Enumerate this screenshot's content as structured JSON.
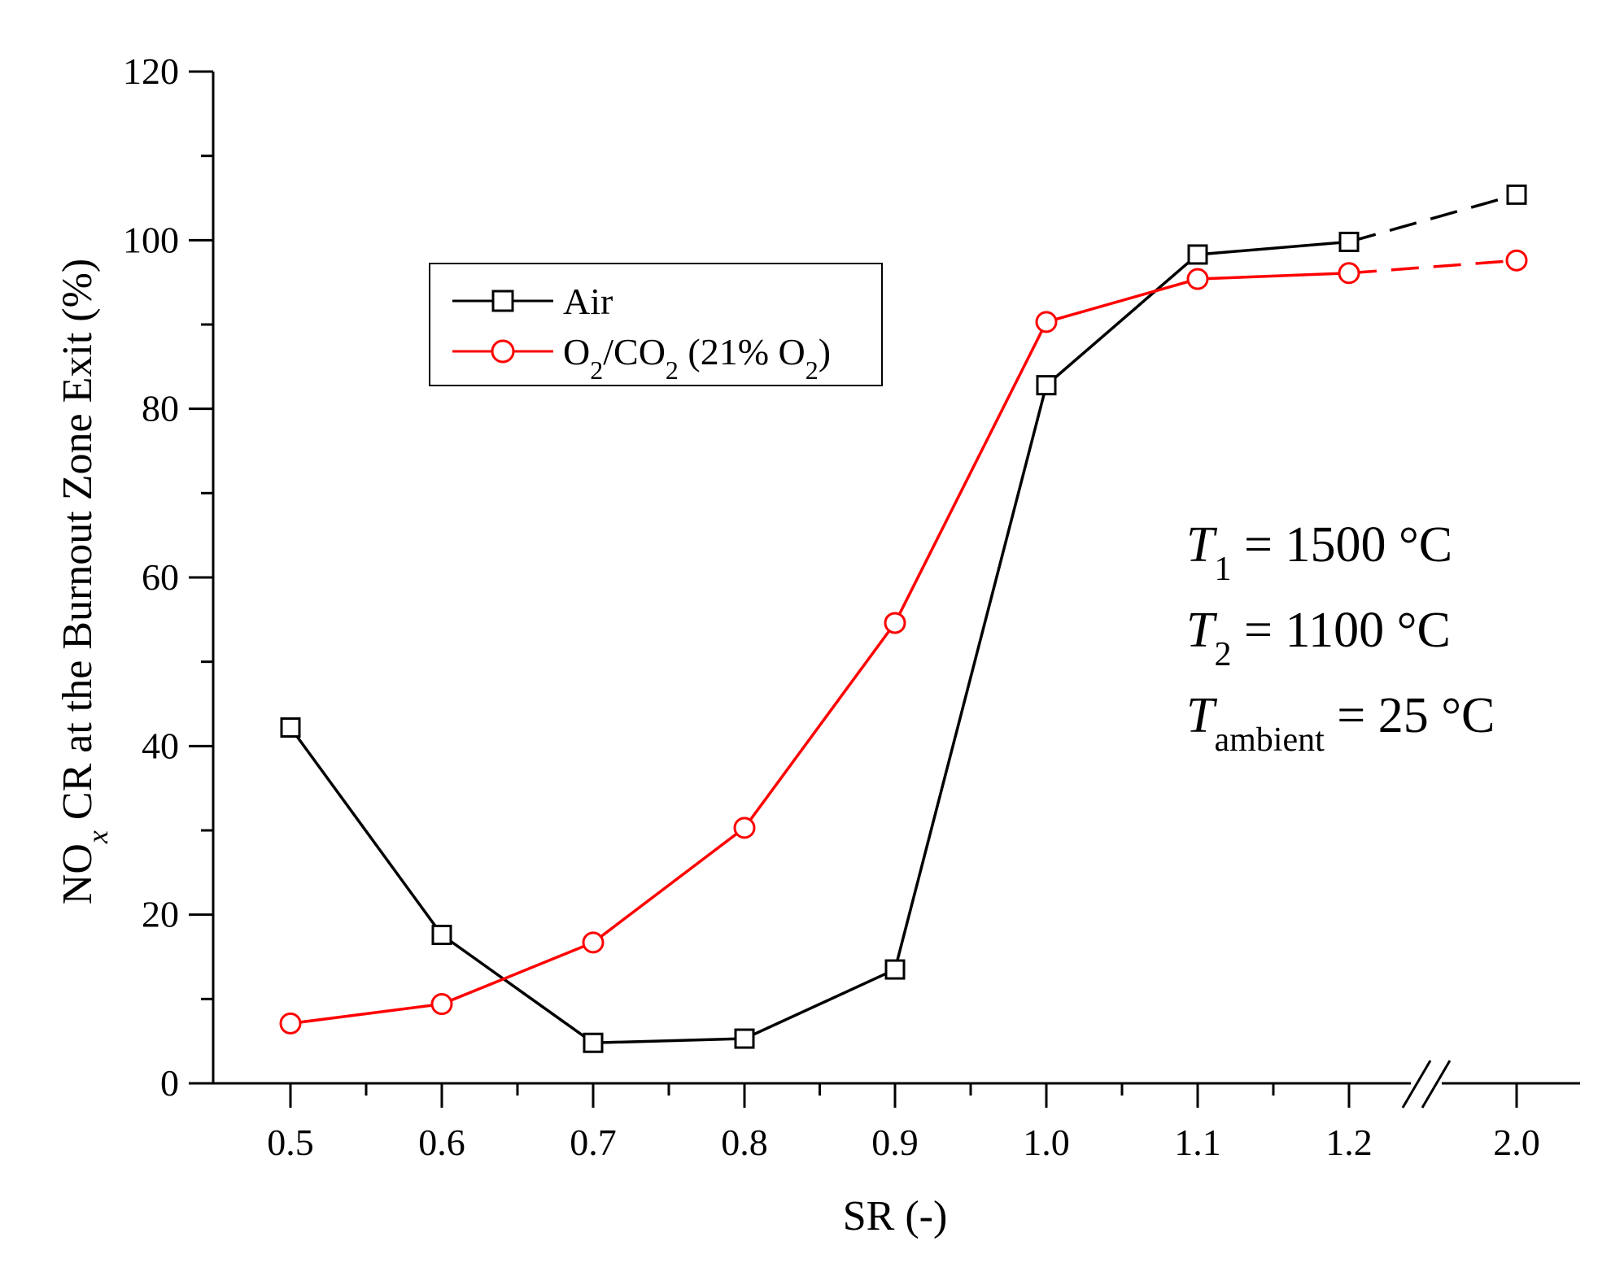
{
  "chart_data": {
    "type": "line",
    "title": "",
    "xlabel": "SR (-)",
    "ylabel": {
      "main": "NO",
      "sub": "x",
      "rest": " CR at the Burnout Zone Exit (%)"
    },
    "categories": [
      "0.5",
      "0.6",
      "0.7",
      "0.8",
      "0.9",
      "1.0",
      "1.1",
      "1.2",
      "2.0"
    ],
    "axis_break_between": [
      "1.2",
      "2.0"
    ],
    "ylim": [
      0,
      120
    ],
    "yticks": [
      0,
      20,
      40,
      60,
      80,
      100,
      120
    ],
    "ytick_labels": [
      "0",
      "20",
      "40",
      "60",
      "80",
      "100",
      "120"
    ],
    "grid": false,
    "legend_position": "upper-left",
    "series": [
      {
        "name": "Air",
        "legend_label": "Air",
        "color": "#000000",
        "marker": "square",
        "values": [
          42.2,
          17.6,
          4.8,
          5.3,
          13.5,
          82.8,
          98.3,
          99.8,
          105.4
        ]
      },
      {
        "name": "O2/CO2 (21% O2)",
        "legend_label": {
          "p1": "O",
          "s1": "2",
          "p2": "/CO",
          "s2": "2",
          "p3": " (21% O",
          "s3": "2",
          "p4": ")"
        },
        "color": "#ff0000",
        "marker": "circle",
        "values": [
          7.1,
          9.4,
          16.7,
          30.3,
          54.6,
          90.3,
          95.4,
          96.1,
          97.6
        ]
      }
    ],
    "annotations": [
      {
        "var": "T",
        "sub": "1",
        "rest": " = 1500 °C"
      },
      {
        "var": "T",
        "sub": "2",
        "rest": " = 1100 °C"
      },
      {
        "var": "T",
        "sub": "ambient",
        "rest": " = 25 °C"
      }
    ]
  }
}
